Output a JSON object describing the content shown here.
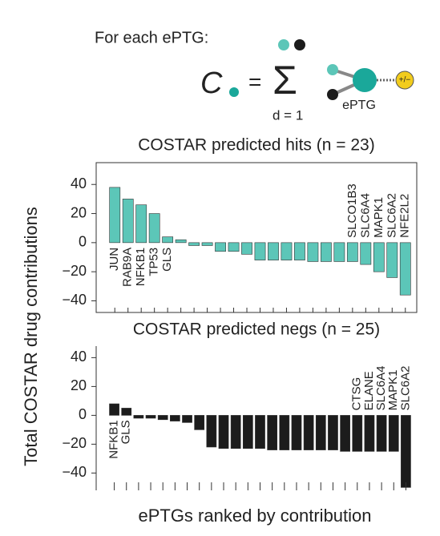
{
  "header": {
    "intro": "For each ePTG:",
    "symbol": "C",
    "equals": "=",
    "sum": "Σ",
    "lower": "d = 1",
    "node": "ePTG",
    "charge": "+/−"
  },
  "y_label": "Total COSTAR drug contributions",
  "x_label": "ePTGs ranked by contribution",
  "chart_data": [
    {
      "type": "bar",
      "title": "COSTAR predicted hits (n = 23)",
      "color": "#5cc6b8",
      "categories": [
        "JUN",
        "RAB9A",
        "NFKB1",
        "TP53",
        "GLS",
        null,
        null,
        null,
        null,
        null,
        null,
        null,
        null,
        null,
        null,
        null,
        null,
        null,
        "SLCO1B3",
        "SLC6A4",
        "MAPK1",
        "SLC6A2",
        "NFE2L2"
      ],
      "values": [
        38,
        30,
        26,
        20,
        4,
        2,
        -2,
        -2,
        -6,
        -6,
        -8,
        -12,
        -12,
        -12,
        -12,
        -13,
        -13,
        -13,
        -13,
        -15,
        -20,
        -24,
        -36
      ],
      "ylim": [
        -48,
        55
      ],
      "yticks": [
        {
          "value": -40,
          "label": "−40"
        },
        {
          "value": -20,
          "label": "−20"
        },
        0,
        20,
        40
      ]
    },
    {
      "type": "bar",
      "title": "COSTAR predicted negs (n = 25)",
      "color": "#1c1c1c",
      "categories": [
        "NFKB1",
        "GLS",
        null,
        null,
        null,
        null,
        null,
        null,
        null,
        null,
        null,
        null,
        null,
        null,
        null,
        null,
        null,
        null,
        null,
        null,
        "CTSG",
        "ELANE",
        "SLC6A4",
        "MAPK1",
        "SLC6A2"
      ],
      "values": [
        8,
        5,
        -2,
        -2,
        -3,
        -4,
        -5,
        -10,
        -22,
        -23,
        -23,
        -23,
        -23,
        -24,
        -24,
        -24,
        -24,
        -24,
        -24,
        -25,
        -25,
        -25,
        -25,
        -25,
        -50
      ],
      "ylim": [
        -52,
        48
      ],
      "yticks": [
        {
          "value": -40,
          "label": "−40"
        },
        {
          "value": -20,
          "label": "−20"
        },
        0,
        20,
        40
      ]
    }
  ]
}
